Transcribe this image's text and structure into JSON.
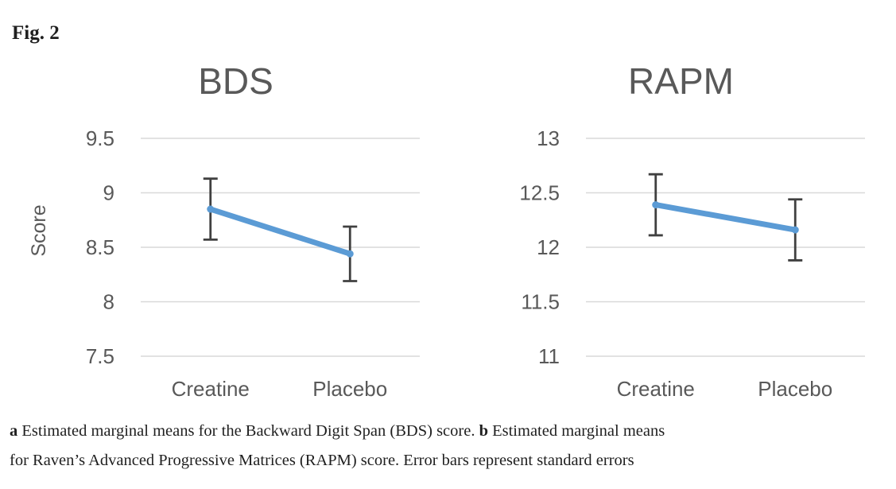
{
  "figure_label": "Fig. 2",
  "colors": {
    "accent_line": "#5b9bd5",
    "error_bar": "#404040",
    "gridline": "#d9d9d9",
    "chart_text": "#595959",
    "caption_text": "#1f1f1f"
  },
  "chart_data": [
    {
      "type": "line",
      "title": "BDS",
      "ylabel": "Score",
      "xlabel": "",
      "categories": [
        "Creatine",
        "Placebo"
      ],
      "series": [
        {
          "name": "Estimated marginal mean",
          "values": [
            8.85,
            8.44
          ],
          "error_low": [
            8.57,
            8.19
          ],
          "error_high": [
            9.13,
            8.69
          ]
        }
      ],
      "ylim": [
        7.5,
        9.5
      ],
      "yticks": [
        "9.5",
        "9",
        "8.5",
        "8",
        "7.5"
      ],
      "grid": true,
      "legend": "none"
    },
    {
      "type": "line",
      "title": "RAPM",
      "ylabel": "",
      "xlabel": "",
      "categories": [
        "Creatine",
        "Placebo"
      ],
      "series": [
        {
          "name": "Estimated marginal mean",
          "values": [
            12.39,
            12.16
          ],
          "error_low": [
            12.11,
            11.88
          ],
          "error_high": [
            12.67,
            12.44
          ]
        }
      ],
      "ylim": [
        11,
        13
      ],
      "yticks": [
        "13",
        "12.5",
        "12",
        "11.5",
        "11"
      ],
      "grid": true,
      "legend": "none"
    }
  ],
  "caption": {
    "marker_a": "a",
    "text_a": "Estimated marginal means for the Backward Digit Span (BDS) score.",
    "marker_b": "b",
    "text_b": "Estimated marginal means",
    "line2": "for Raven’s Advanced Progressive Matrices (RAPM) score. Error bars represent standard errors"
  }
}
